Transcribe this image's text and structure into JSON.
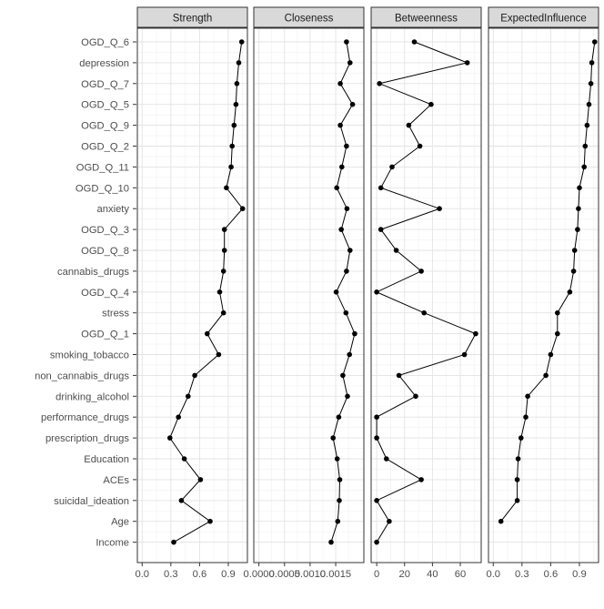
{
  "chart_data": {
    "type": "line",
    "layout": "faceted-dot-plot",
    "categories": [
      "OGD_Q_6",
      "depression",
      "OGD_Q_7",
      "OGD_Q_5",
      "OGD_Q_9",
      "OGD_Q_2",
      "OGD_Q_11",
      "OGD_Q_10",
      "anxiety",
      "OGD_Q_3",
      "OGD_Q_8",
      "cannabis_drugs",
      "OGD_Q_4",
      "stress",
      "OGD_Q_1",
      "smoking_tobacco",
      "non_cannabis_drugs",
      "drinking_alcohol",
      "performance_drugs",
      "prescription_drugs",
      "Education",
      "ACEs",
      "suicidal_ideation",
      "Age",
      "Income"
    ],
    "grid": true,
    "facets": [
      {
        "name": "Strength",
        "xlim": [
          -0.05,
          1.1
        ],
        "ticks": [
          0,
          0.3,
          0.6,
          0.9
        ],
        "tick_labels": [
          "0.0",
          "0.3",
          "0.6",
          "0.9"
        ],
        "minor_ticks": [
          0.15,
          0.45,
          0.75,
          1.05
        ],
        "values": [
          1.04,
          1.01,
          0.99,
          0.98,
          0.96,
          0.94,
          0.93,
          0.88,
          1.05,
          0.86,
          0.86,
          0.85,
          0.81,
          0.85,
          0.68,
          0.8,
          0.55,
          0.48,
          0.38,
          0.29,
          0.44,
          0.61,
          0.41,
          0.71,
          0.33
        ]
      },
      {
        "name": "Closeness",
        "xlim": [
          -0.0001,
          0.00205
        ],
        "ticks": [
          0,
          0.0005,
          0.001,
          0.0015
        ],
        "tick_labels": [
          "0.0000",
          "0.0005",
          "0.0010",
          "0.0015"
        ],
        "minor_ticks": [
          0.00025,
          0.00075,
          0.00125,
          0.00175
        ],
        "values": [
          0.00171,
          0.00178,
          0.00159,
          0.00183,
          0.00159,
          0.00171,
          0.00162,
          0.00152,
          0.00172,
          0.00161,
          0.00178,
          0.00171,
          0.00151,
          0.0017,
          0.00187,
          0.00177,
          0.00164,
          0.00173,
          0.00156,
          0.00145,
          0.00153,
          0.00158,
          0.00157,
          0.00154,
          0.00141
        ]
      },
      {
        "name": "Betweenness",
        "xlim": [
          -4,
          75
        ],
        "ticks": [
          0,
          20,
          40,
          60
        ],
        "tick_labels": [
          "0",
          "20",
          "40",
          "60"
        ],
        "minor_ticks": [
          10,
          30,
          50,
          70
        ],
        "values": [
          27,
          65,
          2,
          39,
          23,
          31,
          11,
          3,
          45,
          3,
          14,
          32,
          0,
          34,
          71,
          63,
          16,
          28,
          0,
          0,
          7,
          32,
          0,
          9,
          0
        ]
      },
      {
        "name": "ExpectedInfluence",
        "xlim": [
          -0.05,
          1.1
        ],
        "ticks": [
          0,
          0.3,
          0.6,
          0.9
        ],
        "tick_labels": [
          "0.0",
          "0.3",
          "0.6",
          "0.9"
        ],
        "minor_ticks": [
          0.15,
          0.45,
          0.75,
          1.05
        ],
        "values": [
          1.06,
          1.03,
          1.02,
          1.0,
          0.98,
          0.96,
          0.95,
          0.9,
          0.89,
          0.88,
          0.85,
          0.84,
          0.8,
          0.67,
          0.67,
          0.6,
          0.55,
          0.36,
          0.34,
          0.29,
          0.26,
          0.25,
          0.25,
          0.08,
          null
        ]
      }
    ]
  }
}
